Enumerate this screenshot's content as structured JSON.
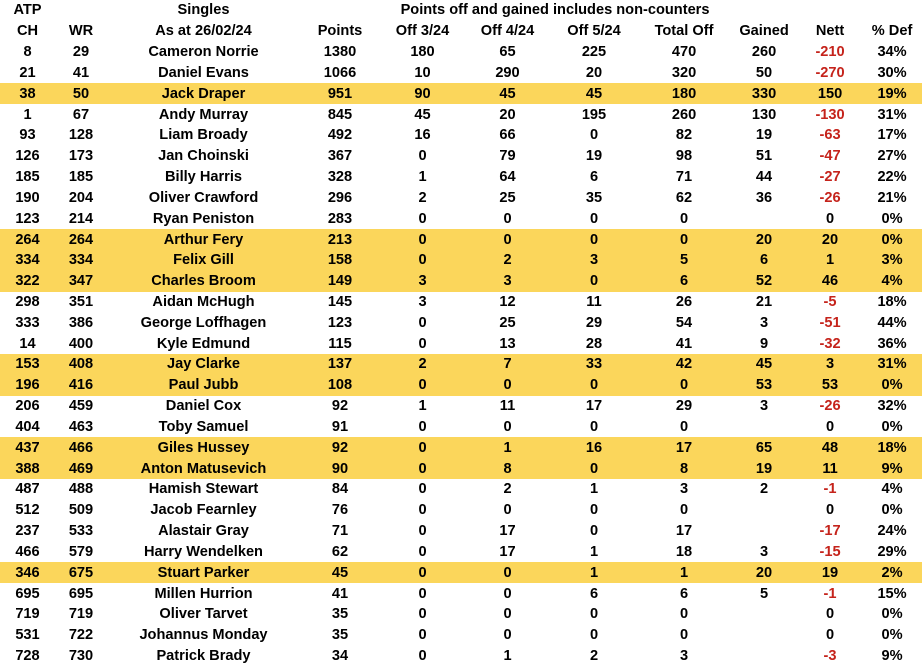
{
  "title_row": {
    "atp_label": "ATP",
    "singles_label": "Singles",
    "note": "Points off and gained includes non-counters"
  },
  "columns": [
    "CH",
    "WR",
    "As at 26/02/24",
    "Points",
    "Off 3/24",
    "Off 4/24",
    "Off 5/24",
    "Total Off",
    "Gained",
    "Nett",
    "% Def"
  ],
  "colors": {
    "highlight_yellow": "#fbd65b",
    "negative_red": "#c5231b",
    "text": "#000000",
    "background": "#ffffff"
  },
  "rows": [
    {
      "ch": "8",
      "wr": "29",
      "name": "Cameron Norrie",
      "points": "1380",
      "off_324": "180",
      "off_424": "65",
      "off_524": "225",
      "total_off": "470",
      "gained": "260",
      "nett": "-210",
      "pct_def": "34%",
      "highlight": false
    },
    {
      "ch": "21",
      "wr": "41",
      "name": "Daniel Evans",
      "points": "1066",
      "off_324": "10",
      "off_424": "290",
      "off_524": "20",
      "total_off": "320",
      "gained": "50",
      "nett": "-270",
      "pct_def": "30%",
      "highlight": false
    },
    {
      "ch": "38",
      "wr": "50",
      "name": "Jack Draper",
      "points": "951",
      "off_324": "90",
      "off_424": "45",
      "off_524": "45",
      "total_off": "180",
      "gained": "330",
      "nett": "150",
      "pct_def": "19%",
      "highlight": true
    },
    {
      "ch": "1",
      "wr": "67",
      "name": "Andy Murray",
      "points": "845",
      "off_324": "45",
      "off_424": "20",
      "off_524": "195",
      "total_off": "260",
      "gained": "130",
      "nett": "-130",
      "pct_def": "31%",
      "highlight": false
    },
    {
      "ch": "93",
      "wr": "128",
      "name": "Liam Broady",
      "points": "492",
      "off_324": "16",
      "off_424": "66",
      "off_524": "0",
      "total_off": "82",
      "gained": "19",
      "nett": "-63",
      "pct_def": "17%",
      "highlight": false
    },
    {
      "ch": "126",
      "wr": "173",
      "name": "Jan Choinski",
      "points": "367",
      "off_324": "0",
      "off_424": "79",
      "off_524": "19",
      "total_off": "98",
      "gained": "51",
      "nett": "-47",
      "pct_def": "27%",
      "highlight": false
    },
    {
      "ch": "185",
      "wr": "185",
      "name": "Billy Harris",
      "points": "328",
      "off_324": "1",
      "off_424": "64",
      "off_524": "6",
      "total_off": "71",
      "gained": "44",
      "nett": "-27",
      "pct_def": "22%",
      "highlight": false
    },
    {
      "ch": "190",
      "wr": "204",
      "name": "Oliver Crawford",
      "points": "296",
      "off_324": "2",
      "off_424": "25",
      "off_524": "35",
      "total_off": "62",
      "gained": "36",
      "nett": "-26",
      "pct_def": "21%",
      "highlight": false
    },
    {
      "ch": "123",
      "wr": "214",
      "name": "Ryan Peniston",
      "points": "283",
      "off_324": "0",
      "off_424": "0",
      "off_524": "0",
      "total_off": "0",
      "gained": "",
      "nett": "0",
      "pct_def": "0%",
      "highlight": false
    },
    {
      "ch": "264",
      "wr": "264",
      "name": "Arthur Fery",
      "points": "213",
      "off_324": "0",
      "off_424": "0",
      "off_524": "0",
      "total_off": "0",
      "gained": "20",
      "nett": "20",
      "pct_def": "0%",
      "highlight": true
    },
    {
      "ch": "334",
      "wr": "334",
      "name": "Felix Gill",
      "points": "158",
      "off_324": "0",
      "off_424": "2",
      "off_524": "3",
      "total_off": "5",
      "gained": "6",
      "nett": "1",
      "pct_def": "3%",
      "highlight": true
    },
    {
      "ch": "322",
      "wr": "347",
      "name": "Charles Broom",
      "points": "149",
      "off_324": "3",
      "off_424": "3",
      "off_524": "0",
      "total_off": "6",
      "gained": "52",
      "nett": "46",
      "pct_def": "4%",
      "highlight": true
    },
    {
      "ch": "298",
      "wr": "351",
      "name": "Aidan McHugh",
      "points": "145",
      "off_324": "3",
      "off_424": "12",
      "off_524": "11",
      "total_off": "26",
      "gained": "21",
      "nett": "-5",
      "pct_def": "18%",
      "highlight": false
    },
    {
      "ch": "333",
      "wr": "386",
      "name": "George Loffhagen",
      "points": "123",
      "off_324": "0",
      "off_424": "25",
      "off_524": "29",
      "total_off": "54",
      "gained": "3",
      "nett": "-51",
      "pct_def": "44%",
      "highlight": false
    },
    {
      "ch": "14",
      "wr": "400",
      "name": "Kyle Edmund",
      "points": "115",
      "off_324": "0",
      "off_424": "13",
      "off_524": "28",
      "total_off": "41",
      "gained": "9",
      "nett": "-32",
      "pct_def": "36%",
      "highlight": false
    },
    {
      "ch": "153",
      "wr": "408",
      "name": "Jay Clarke",
      "points": "137",
      "off_324": "2",
      "off_424": "7",
      "off_524": "33",
      "total_off": "42",
      "gained": "45",
      "nett": "3",
      "pct_def": "31%",
      "highlight": true
    },
    {
      "ch": "196",
      "wr": "416",
      "name": "Paul Jubb",
      "points": "108",
      "off_324": "0",
      "off_424": "0",
      "off_524": "0",
      "total_off": "0",
      "gained": "53",
      "nett": "53",
      "pct_def": "0%",
      "highlight": true
    },
    {
      "ch": "206",
      "wr": "459",
      "name": "Daniel Cox",
      "points": "92",
      "off_324": "1",
      "off_424": "11",
      "off_524": "17",
      "total_off": "29",
      "gained": "3",
      "nett": "-26",
      "pct_def": "32%",
      "highlight": false
    },
    {
      "ch": "404",
      "wr": "463",
      "name": "Toby Samuel",
      "points": "91",
      "off_324": "0",
      "off_424": "0",
      "off_524": "0",
      "total_off": "0",
      "gained": "",
      "nett": "0",
      "pct_def": "0%",
      "highlight": false
    },
    {
      "ch": "437",
      "wr": "466",
      "name": "Giles Hussey",
      "points": "92",
      "off_324": "0",
      "off_424": "1",
      "off_524": "16",
      "total_off": "17",
      "gained": "65",
      "nett": "48",
      "pct_def": "18%",
      "highlight": true
    },
    {
      "ch": "388",
      "wr": "469",
      "name": "Anton Matusevich",
      "points": "90",
      "off_324": "0",
      "off_424": "8",
      "off_524": "0",
      "total_off": "8",
      "gained": "19",
      "nett": "11",
      "pct_def": "9%",
      "highlight": true
    },
    {
      "ch": "487",
      "wr": "488",
      "name": "Hamish Stewart",
      "points": "84",
      "off_324": "0",
      "off_424": "2",
      "off_524": "1",
      "total_off": "3",
      "gained": "2",
      "nett": "-1",
      "pct_def": "4%",
      "highlight": false
    },
    {
      "ch": "512",
      "wr": "509",
      "name": "Jacob Fearnley",
      "points": "76",
      "off_324": "0",
      "off_424": "0",
      "off_524": "0",
      "total_off": "0",
      "gained": "",
      "nett": "0",
      "pct_def": "0%",
      "highlight": false
    },
    {
      "ch": "237",
      "wr": "533",
      "name": "Alastair Gray",
      "points": "71",
      "off_324": "0",
      "off_424": "17",
      "off_524": "0",
      "total_off": "17",
      "gained": "",
      "nett": "-17",
      "pct_def": "24%",
      "highlight": false
    },
    {
      "ch": "466",
      "wr": "579",
      "name": "Harry Wendelken",
      "points": "62",
      "off_324": "0",
      "off_424": "17",
      "off_524": "1",
      "total_off": "18",
      "gained": "3",
      "nett": "-15",
      "pct_def": "29%",
      "highlight": false
    },
    {
      "ch": "346",
      "wr": "675",
      "name": "Stuart Parker",
      "points": "45",
      "off_324": "0",
      "off_424": "0",
      "off_524": "1",
      "total_off": "1",
      "gained": "20",
      "nett": "19",
      "pct_def": "2%",
      "highlight": true
    },
    {
      "ch": "695",
      "wr": "695",
      "name": "Millen Hurrion",
      "points": "41",
      "off_324": "0",
      "off_424": "0",
      "off_524": "6",
      "total_off": "6",
      "gained": "5",
      "nett": "-1",
      "pct_def": "15%",
      "highlight": false
    },
    {
      "ch": "719",
      "wr": "719",
      "name": "Oliver Tarvet",
      "points": "35",
      "off_324": "0",
      "off_424": "0",
      "off_524": "0",
      "total_off": "0",
      "gained": "",
      "nett": "0",
      "pct_def": "0%",
      "highlight": false
    },
    {
      "ch": "531",
      "wr": "722",
      "name": "Johannus Monday",
      "points": "35",
      "off_324": "0",
      "off_424": "0",
      "off_524": "0",
      "total_off": "0",
      "gained": "",
      "nett": "0",
      "pct_def": "0%",
      "highlight": false
    },
    {
      "ch": "728",
      "wr": "730",
      "name": "Patrick Brady",
      "points": "34",
      "off_324": "0",
      "off_424": "1",
      "off_524": "2",
      "total_off": "3",
      "gained": "",
      "nett": "-3",
      "pct_def": "9%",
      "highlight": false
    }
  ]
}
